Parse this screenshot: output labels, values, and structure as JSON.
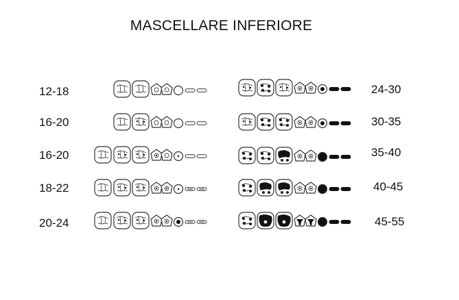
{
  "title": "MASCELLARE INFERIORE",
  "left_column": {
    "ages": [
      "12-18",
      "16-20",
      "16-20",
      "18-22",
      "20-24"
    ]
  },
  "right_column": {
    "ages": [
      "24-30",
      "30-35",
      "35-40",
      "40-45",
      "45-55"
    ]
  },
  "colors": {
    "ink": "#111111",
    "outline": "#333333",
    "background": "#ffffff"
  }
}
